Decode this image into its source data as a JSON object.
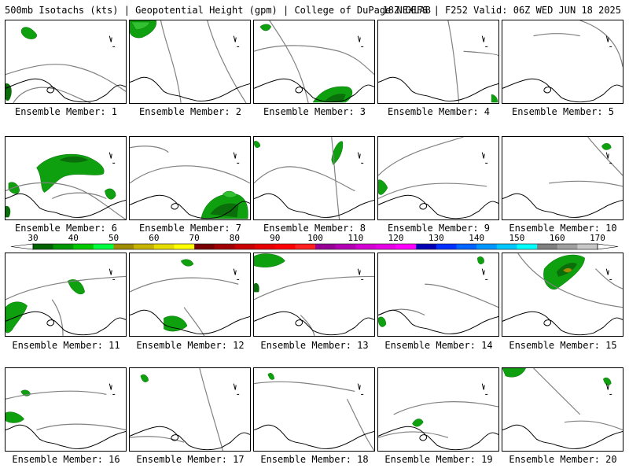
{
  "header": {
    "left": "500mb Isotachs (kts) | Geopotential Height (gpm) | College of DuPage NEXLAB",
    "right": "18Z GEFS | F252 Valid: 06Z WED JUN 18 2025"
  },
  "panels": [
    {
      "label": "Ensemble Member: 1"
    },
    {
      "label": "Ensemble Member: 2"
    },
    {
      "label": "Ensemble Member: 3"
    },
    {
      "label": "Ensemble Member: 4"
    },
    {
      "label": "Ensemble Member: 5"
    },
    {
      "label": "Ensemble Member: 6"
    },
    {
      "label": "Ensemble Member: 7"
    },
    {
      "label": "Ensemble Member: 8"
    },
    {
      "label": "Ensemble Member: 9"
    },
    {
      "label": "Ensemble Member: 10"
    },
    {
      "label": "Ensemble Member: 11"
    },
    {
      "label": "Ensemble Member: 12"
    },
    {
      "label": "Ensemble Member: 13"
    },
    {
      "label": "Ensemble Member: 14"
    },
    {
      "label": "Ensemble Member: 15"
    },
    {
      "label": "Ensemble Member: 16"
    },
    {
      "label": "Ensemble Member: 17"
    },
    {
      "label": "Ensemble Member: 18"
    },
    {
      "label": "Ensemble Member: 19"
    },
    {
      "label": "Ensemble Member: 20"
    }
  ],
  "colorbar": {
    "ticks": [
      "30",
      "40",
      "50",
      "60",
      "70",
      "80",
      "90",
      "100",
      "110",
      "120",
      "130",
      "140",
      "150",
      "160",
      "170"
    ],
    "colors": [
      "#006400",
      "#009600",
      "#00c800",
      "#00ff40",
      "#a08c00",
      "#c8b400",
      "#e6dc00",
      "#ffff00",
      "#780000",
      "#a00000",
      "#c80000",
      "#e60000",
      "#ff0000",
      "#ff2020",
      "#960096",
      "#b400b4",
      "#d200d2",
      "#e600e6",
      "#ff00ff",
      "#0000b4",
      "#0032ff",
      "#0064ff",
      "#0096ff",
      "#00c8ff",
      "#00ffff",
      "#808080",
      "#a0a0a0",
      "#c8c8c8"
    ]
  },
  "colors": {
    "coast": "#000000",
    "height_contour": "#808080",
    "wind_dark": "#0a6e0a",
    "wind_mid": "#0fa00f",
    "wind_light": "#30c030"
  }
}
